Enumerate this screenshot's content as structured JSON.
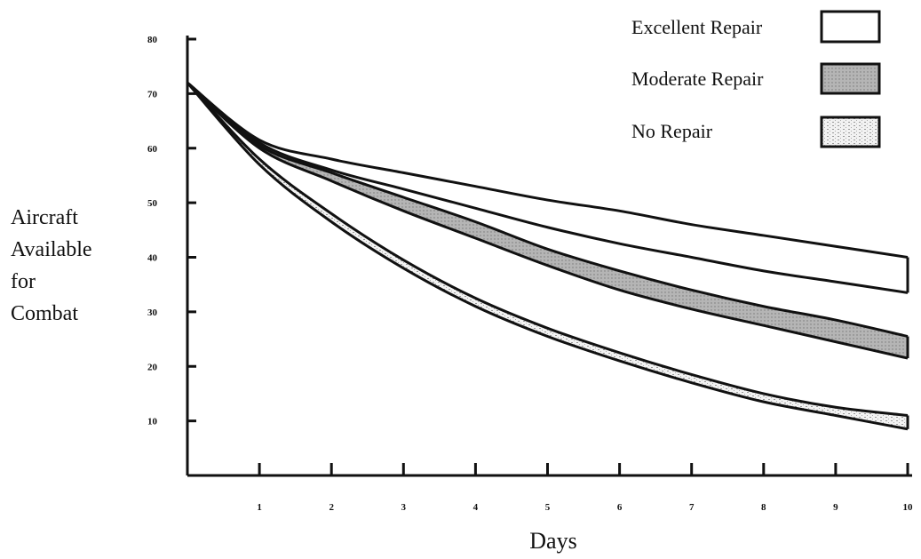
{
  "chart_data": {
    "type": "area",
    "title": "",
    "xlabel": "Days",
    "ylabel_lines": [
      "Aircraft",
      "Available",
      "for",
      "Combat"
    ],
    "xlim": [
      0,
      10
    ],
    "ylim": [
      0,
      80
    ],
    "x_ticks": [
      1,
      2,
      3,
      4,
      5,
      6,
      7,
      8,
      9,
      10
    ],
    "y_ticks": [
      10,
      20,
      30,
      40,
      50,
      60,
      70,
      80
    ],
    "grid": false,
    "legend_position": "top-right",
    "x": [
      0,
      1,
      2,
      3,
      4,
      5,
      6,
      7,
      8,
      9,
      10
    ],
    "series": [
      {
        "name": "Excellent Repair",
        "fill": "#ffffff",
        "upper": [
          72,
          61.5,
          58,
          55.5,
          53,
          50.5,
          48.5,
          46,
          44,
          42,
          40
        ],
        "lower": [
          72,
          61,
          56,
          52.5,
          49,
          45.5,
          42.5,
          40,
          37.5,
          35.5,
          33.5
        ]
      },
      {
        "name": "Moderate Repair",
        "fill": "#b5b5b5",
        "upper": [
          72,
          60.5,
          55.5,
          51,
          46.5,
          41.5,
          37.5,
          34,
          31,
          28.5,
          25.5
        ],
        "lower": [
          72,
          60,
          54,
          48.5,
          43.5,
          38.5,
          34,
          30.5,
          27.5,
          24.5,
          21.5
        ]
      },
      {
        "name": "No Repair",
        "fill": "#e6e6e6",
        "upper": [
          72,
          58,
          48,
          39.5,
          32.5,
          27,
          22.5,
          18.5,
          15,
          12.5,
          11
        ],
        "lower": [
          72,
          57,
          46.5,
          38,
          31,
          25.5,
          21,
          17,
          13.5,
          11,
          8.5
        ]
      }
    ]
  }
}
